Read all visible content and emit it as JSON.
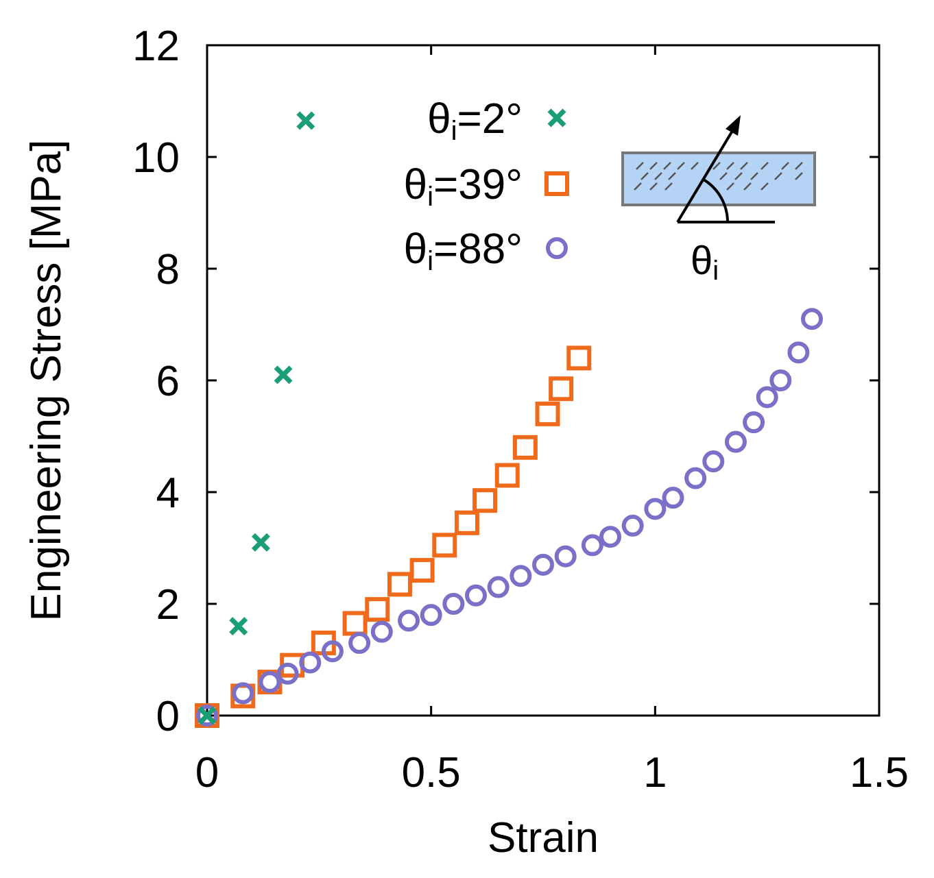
{
  "chart_data": {
    "type": "scatter",
    "title": "",
    "xlabel": "Strain",
    "ylabel": "Engineering Stress [MPa]",
    "xlim": [
      0,
      1.5
    ],
    "ylim": [
      0,
      12
    ],
    "x_ticks": [
      "0",
      "0.5",
      "1",
      "1.5"
    ],
    "y_ticks": [
      "0",
      "2",
      "4",
      "6",
      "8",
      "10",
      "12"
    ],
    "legend_position": "top-center",
    "inset_label": "θ",
    "inset_label_sub": "i",
    "series": [
      {
        "name": "θi=2°",
        "label_main": "θ",
        "label_sub": "i",
        "label_rest": "=2°",
        "marker": "x",
        "color": "#1a9e78",
        "points": [
          [
            0.0,
            0.0
          ],
          [
            0.07,
            1.6
          ],
          [
            0.12,
            3.1
          ],
          [
            0.17,
            6.1
          ],
          [
            0.22,
            10.65
          ]
        ]
      },
      {
        "name": "θi=39°",
        "label_main": "θ",
        "label_sub": "i",
        "label_rest": "=39°",
        "marker": "square",
        "color": "#f06a1c",
        "points": [
          [
            0.0,
            0.0
          ],
          [
            0.08,
            0.35
          ],
          [
            0.14,
            0.6
          ],
          [
            0.19,
            0.9
          ],
          [
            0.26,
            1.3
          ],
          [
            0.33,
            1.65
          ],
          [
            0.38,
            1.9
          ],
          [
            0.43,
            2.35
          ],
          [
            0.48,
            2.6
          ],
          [
            0.53,
            3.05
          ],
          [
            0.58,
            3.45
          ],
          [
            0.62,
            3.85
          ],
          [
            0.67,
            4.3
          ],
          [
            0.71,
            4.8
          ],
          [
            0.76,
            5.4
          ],
          [
            0.79,
            5.85
          ],
          [
            0.83,
            6.4
          ]
        ]
      },
      {
        "name": "θi=88°",
        "label_main": "θ",
        "label_sub": "i",
        "label_rest": "=88°",
        "marker": "circle",
        "color": "#7b70c8",
        "points": [
          [
            0.0,
            0.0
          ],
          [
            0.08,
            0.4
          ],
          [
            0.14,
            0.6
          ],
          [
            0.18,
            0.75
          ],
          [
            0.23,
            0.95
          ],
          [
            0.28,
            1.15
          ],
          [
            0.34,
            1.3
          ],
          [
            0.39,
            1.5
          ],
          [
            0.45,
            1.7
          ],
          [
            0.5,
            1.8
          ],
          [
            0.55,
            2.0
          ],
          [
            0.6,
            2.15
          ],
          [
            0.65,
            2.3
          ],
          [
            0.7,
            2.5
          ],
          [
            0.75,
            2.7
          ],
          [
            0.8,
            2.85
          ],
          [
            0.86,
            3.05
          ],
          [
            0.9,
            3.2
          ],
          [
            0.95,
            3.4
          ],
          [
            1.0,
            3.7
          ],
          [
            1.04,
            3.9
          ],
          [
            1.09,
            4.25
          ],
          [
            1.13,
            4.55
          ],
          [
            1.18,
            4.9
          ],
          [
            1.22,
            5.25
          ],
          [
            1.25,
            5.7
          ],
          [
            1.28,
            6.0
          ],
          [
            1.32,
            6.5
          ],
          [
            1.35,
            7.1
          ]
        ]
      }
    ]
  }
}
